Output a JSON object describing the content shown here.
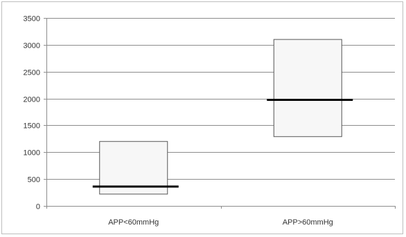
{
  "chart_data": {
    "type": "bar",
    "subtype": "floating-box-with-median",
    "title": "",
    "xlabel": "",
    "ylabel": "",
    "ylim": [
      0,
      3500
    ],
    "y_ticks": [
      0,
      500,
      1000,
      1500,
      2000,
      2500,
      3000,
      3500
    ],
    "grid": true,
    "legend": "none",
    "categories": [
      "APP<60mmHg",
      "APP>60mmHg"
    ],
    "boxes": [
      {
        "category": "APP<60mmHg",
        "low": 220,
        "high": 1200,
        "median": 360
      },
      {
        "category": "APP>60mmHg",
        "low": 1290,
        "high": 3100,
        "median": 1975
      }
    ],
    "colors": {
      "box_fill": "#f7f7f7",
      "box_stroke": "#555555",
      "median": "#000000",
      "grid": "#8c8c8c",
      "axis": "#8c8c8c"
    }
  }
}
